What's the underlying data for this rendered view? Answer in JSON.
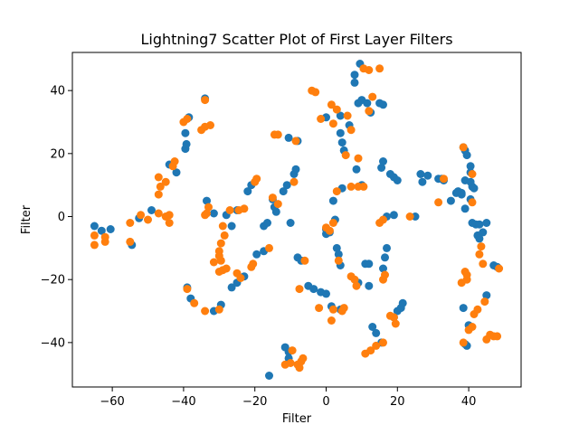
{
  "chart_data": {
    "type": "scatter",
    "title": "Lightning7 Scatter Plot of First Layer Filters",
    "xlabel": "Filter",
    "ylabel": "Filter",
    "xlim": [
      -71.2,
      54.7
    ],
    "ylim": [
      -54.1,
      52.1
    ],
    "xticks": [
      -60,
      -40,
      -20,
      0,
      20,
      40
    ],
    "yticks": [
      -40,
      -20,
      0,
      20,
      40
    ],
    "grid": false,
    "colors": {
      "series_1": "#1f77b4",
      "series_2": "#ff7f0e"
    },
    "series": [
      {
        "color": "#1f77b4",
        "points": [
          [
            -65,
            -3
          ],
          [
            -63,
            -4.5
          ],
          [
            -60.5,
            -4
          ],
          [
            -54.5,
            -9
          ],
          [
            -52.5,
            -0.5
          ],
          [
            -49,
            2
          ],
          [
            -44,
            16.5
          ],
          [
            -42,
            14
          ],
          [
            -39.5,
            21.5
          ],
          [
            -39.2,
            23
          ],
          [
            -39.5,
            26.5
          ],
          [
            -38.5,
            31.5
          ],
          [
            -39,
            -22.5
          ],
          [
            -38,
            -26
          ],
          [
            -34,
            37.5
          ],
          [
            -33.5,
            5
          ],
          [
            -31.5,
            -30
          ],
          [
            -31.5,
            1
          ],
          [
            -29.5,
            -28
          ],
          [
            -28,
            0.5
          ],
          [
            -26.5,
            -3
          ],
          [
            -26.5,
            -22.5
          ],
          [
            -25,
            -21
          ],
          [
            -25,
            2
          ],
          [
            -23,
            -19
          ],
          [
            -22,
            8
          ],
          [
            -21,
            10
          ],
          [
            -19.5,
            -12
          ],
          [
            -17.5,
            -11
          ],
          [
            -17.5,
            -3
          ],
          [
            -16.5,
            -2
          ],
          [
            -15,
            5.5
          ],
          [
            -14.5,
            3
          ],
          [
            -14,
            1.5
          ],
          [
            -12,
            8
          ],
          [
            -11,
            10
          ],
          [
            -10.5,
            25
          ],
          [
            -10,
            -2
          ],
          [
            -9,
            13.5
          ],
          [
            -8.5,
            15
          ],
          [
            -8,
            24
          ],
          [
            -8,
            -13
          ],
          [
            -7,
            -14
          ],
          [
            -11.5,
            -41.5
          ],
          [
            -10.5,
            -43
          ],
          [
            -10.5,
            -45
          ],
          [
            -16,
            -50.5
          ],
          [
            -5,
            -22
          ],
          [
            -3.5,
            -23
          ],
          [
            -1.5,
            -24
          ],
          [
            0,
            -24.5
          ],
          [
            0,
            -4
          ],
          [
            0,
            -5.5
          ],
          [
            0,
            31.5
          ],
          [
            1,
            -5
          ],
          [
            1.5,
            -28.5
          ],
          [
            2,
            5
          ],
          [
            2.5,
            -1
          ],
          [
            3,
            -10
          ],
          [
            3.5,
            -12
          ],
          [
            4,
            -15.5
          ],
          [
            4,
            -29.5
          ],
          [
            4,
            32
          ],
          [
            4.5,
            23.5
          ],
          [
            5,
            21
          ],
          [
            4.5,
            9
          ],
          [
            4,
            26.5
          ],
          [
            6.5,
            29
          ],
          [
            8,
            42.5
          ],
          [
            9,
            -21
          ],
          [
            9,
            36
          ],
          [
            8.5,
            15
          ],
          [
            8,
            45
          ],
          [
            9.5,
            48.5
          ],
          [
            10,
            10
          ],
          [
            10,
            37
          ],
          [
            11.5,
            36
          ],
          [
            12.5,
            33
          ],
          [
            11,
            -15
          ],
          [
            12,
            -15
          ],
          [
            12,
            -22
          ],
          [
            13,
            -35
          ],
          [
            14,
            -37
          ],
          [
            15.5,
            -40
          ],
          [
            15,
            36
          ],
          [
            16,
            35.5
          ],
          [
            15.5,
            15.5
          ],
          [
            16,
            17.5
          ],
          [
            16.5,
            -13
          ],
          [
            17,
            -10
          ],
          [
            16,
            -16.5
          ],
          [
            17,
            0
          ],
          [
            19,
            0.5
          ],
          [
            18,
            13.5
          ],
          [
            19,
            12.5
          ],
          [
            20,
            11.5
          ],
          [
            19,
            -32
          ],
          [
            20,
            -30
          ],
          [
            21,
            -29
          ],
          [
            21.5,
            -27.5
          ],
          [
            25,
            0
          ],
          [
            26.5,
            13.5
          ],
          [
            27,
            11
          ],
          [
            28.5,
            13
          ],
          [
            31.5,
            12
          ],
          [
            32.5,
            12
          ],
          [
            33,
            11.5
          ],
          [
            35,
            5
          ],
          [
            36.5,
            7.5
          ],
          [
            37,
            8
          ],
          [
            38,
            7
          ],
          [
            38,
            7.5
          ],
          [
            38.5,
            22
          ],
          [
            39,
            2.5
          ],
          [
            39,
            11.5
          ],
          [
            39,
            21
          ],
          [
            39.5,
            19.5
          ],
          [
            40.5,
            5.5
          ],
          [
            40.5,
            11
          ],
          [
            40.5,
            14
          ],
          [
            40.5,
            16
          ],
          [
            41,
            9.5
          ],
          [
            41.5,
            9
          ],
          [
            41,
            -2
          ],
          [
            42,
            -2.5
          ],
          [
            43,
            -2.5
          ],
          [
            42.5,
            -6
          ],
          [
            43,
            -7
          ],
          [
            44,
            -5
          ],
          [
            45,
            -2
          ],
          [
            45,
            -25
          ],
          [
            39,
            -40.5
          ],
          [
            38.5,
            -29
          ],
          [
            39.5,
            -41
          ],
          [
            40,
            -34.5
          ],
          [
            47,
            -15.5
          ],
          [
            48,
            -16
          ]
        ]
      },
      {
        "color": "#ff7f0e",
        "points": [
          [
            -65,
            -6
          ],
          [
            -65,
            -9
          ],
          [
            -62,
            -8
          ],
          [
            -62,
            -6.5
          ],
          [
            -55,
            -2
          ],
          [
            -55,
            -8
          ],
          [
            -52,
            0.5
          ],
          [
            -50,
            -1
          ],
          [
            -47,
            1
          ],
          [
            -47,
            7
          ],
          [
            -46.5,
            9.5
          ],
          [
            -47,
            12.5
          ],
          [
            -45,
            11
          ],
          [
            -45,
            0
          ],
          [
            -44,
            0.5
          ],
          [
            -44,
            -2
          ],
          [
            -43,
            16
          ],
          [
            -42.5,
            17.5
          ],
          [
            -40,
            30
          ],
          [
            -39,
            31
          ],
          [
            -39,
            -23
          ],
          [
            -37,
            -27.5
          ],
          [
            -34,
            -30
          ],
          [
            -34,
            0.5
          ],
          [
            -33.5,
            1
          ],
          [
            -33,
            3
          ],
          [
            -32.5,
            29
          ],
          [
            -34,
            28.5
          ],
          [
            -35,
            27.5
          ],
          [
            -34,
            37
          ],
          [
            -31.5,
            -14.5
          ],
          [
            -30,
            -29.5
          ],
          [
            -30,
            -17.5
          ],
          [
            -29.5,
            -8.5
          ],
          [
            -30,
            -11
          ],
          [
            -30,
            -12.5
          ],
          [
            -29.5,
            -14
          ],
          [
            -29,
            -17
          ],
          [
            -28.5,
            -6
          ],
          [
            -29,
            -3
          ],
          [
            -28,
            -16.5
          ],
          [
            -27,
            2
          ],
          [
            -25,
            -18
          ],
          [
            -24,
            -19.5
          ],
          [
            -24.5,
            2
          ],
          [
            -23,
            2.5
          ],
          [
            -21,
            -16
          ],
          [
            -20.5,
            -15
          ],
          [
            -20,
            11
          ],
          [
            -19.5,
            12
          ],
          [
            -16,
            -10
          ],
          [
            -15,
            6
          ],
          [
            -14.5,
            26
          ],
          [
            -13.5,
            26
          ],
          [
            -13.5,
            4
          ],
          [
            -11.5,
            -47
          ],
          [
            -10,
            -46.5
          ],
          [
            -9.5,
            -42.5
          ],
          [
            -9,
            11
          ],
          [
            -8.5,
            24
          ],
          [
            -8,
            -47
          ],
          [
            -7.5,
            -48
          ],
          [
            -7,
            -46
          ],
          [
            -6.5,
            -45
          ],
          [
            -6,
            -14
          ],
          [
            -7.5,
            -23
          ],
          [
            -4,
            40
          ],
          [
            -3,
            39.5
          ],
          [
            -1.5,
            31
          ],
          [
            -2,
            -29
          ],
          [
            0,
            -3.5
          ],
          [
            1,
            -4.5
          ],
          [
            1.5,
            35.5
          ],
          [
            1.5,
            -33
          ],
          [
            2,
            -29.5
          ],
          [
            2,
            -2
          ],
          [
            2,
            29.5
          ],
          [
            3,
            8
          ],
          [
            3,
            34
          ],
          [
            3.5,
            -14
          ],
          [
            4.5,
            -30
          ],
          [
            5,
            -29
          ],
          [
            5.5,
            19.5
          ],
          [
            6,
            32
          ],
          [
            7,
            27.5
          ],
          [
            7,
            -19
          ],
          [
            7,
            9.5
          ],
          [
            8,
            -20
          ],
          [
            8.5,
            -22
          ],
          [
            9,
            9.5
          ],
          [
            9,
            18.5
          ],
          [
            10.5,
            9.5
          ],
          [
            10.5,
            47
          ],
          [
            11,
            -43.5
          ],
          [
            12,
            33.5
          ],
          [
            12,
            46.5
          ],
          [
            12.5,
            -42.5
          ],
          [
            13,
            38
          ],
          [
            14,
            -41
          ],
          [
            15,
            47
          ],
          [
            15,
            -2
          ],
          [
            16,
            -1
          ],
          [
            16,
            -40
          ],
          [
            16,
            -20
          ],
          [
            16.5,
            -18.5
          ],
          [
            18,
            -31.5
          ],
          [
            19,
            -32
          ],
          [
            19.5,
            -34
          ],
          [
            23.5,
            0
          ],
          [
            31.5,
            4.5
          ],
          [
            33,
            12
          ],
          [
            38,
            -21
          ],
          [
            38.5,
            22
          ],
          [
            38.5,
            -40
          ],
          [
            39,
            -17.5
          ],
          [
            39.5,
            -18.5
          ],
          [
            39.5,
            -20
          ],
          [
            40,
            -36
          ],
          [
            41,
            -35
          ],
          [
            41,
            4.5
          ],
          [
            41,
            13.5
          ],
          [
            41.5,
            -31
          ],
          [
            42.5,
            -29.5
          ],
          [
            43,
            -12
          ],
          [
            43.5,
            -9.5
          ],
          [
            44,
            -15
          ],
          [
            44.5,
            -27
          ],
          [
            45,
            -39
          ],
          [
            46,
            -37.5
          ],
          [
            47,
            -38
          ],
          [
            48,
            -38
          ],
          [
            48.5,
            -16.5
          ]
        ]
      }
    ]
  }
}
